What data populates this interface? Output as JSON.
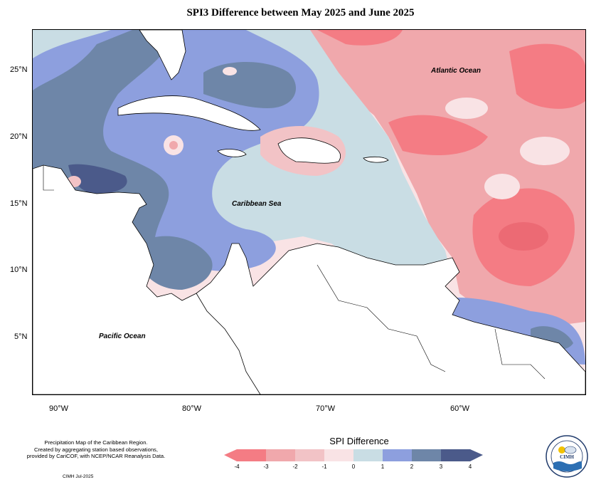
{
  "title": "SPI3 Difference between May 2025 and June 2025",
  "y_axis_labels": [
    "25°N",
    "20°N",
    "15°N",
    "10°N",
    "5°N"
  ],
  "x_axis_labels": [
    "90°W",
    "80°W",
    "70°W",
    "60°W"
  ],
  "ocean_labels": {
    "atlantic": "Atlantic Ocean",
    "caribbean": "Caribbean Sea",
    "pacific": "Pacific Ocean"
  },
  "credit_lines": [
    "Precipitation Map of the Caribbean Region.",
    "Created by aggregating station based observations,",
    "provided by CariCOF, with NCEP/NCAR Reanalysis Data."
  ],
  "credit_date": "CIMH Jul-2025",
  "legend": {
    "title": "SPI Difference",
    "ticks": [
      "-4",
      "-3",
      "-2",
      "-1",
      "0",
      "1",
      "2",
      "3",
      "4"
    ],
    "colors": [
      "#f47c84",
      "#f0a8ac",
      "#f2c3c6",
      "#f9e3e5",
      "#c9dde4",
      "#8d9fde",
      "#6e86a8",
      "#4b5a8a"
    ]
  },
  "logo": {
    "name": "CIMH",
    "icon": "cimh-logo-icon"
  }
}
